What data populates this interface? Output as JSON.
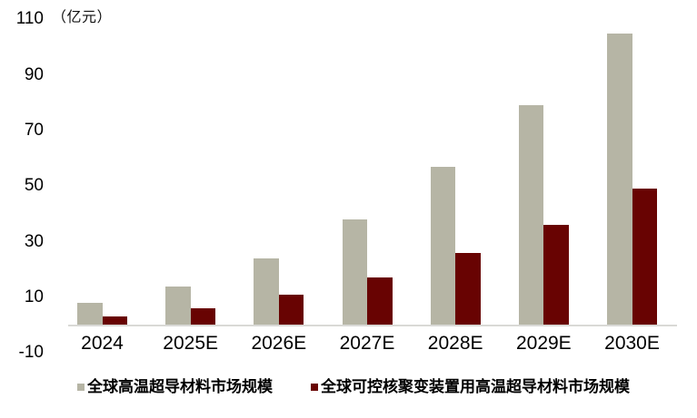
{
  "chart_data": {
    "type": "bar",
    "title": "",
    "unit_label": "（亿元）",
    "categories": [
      "2024",
      "2025E",
      "2026E",
      "2027E",
      "2028E",
      "2029E",
      "2030E"
    ],
    "series": [
      {
        "name": "全球高温超导材料市场规模",
        "color": "#b6b5a5",
        "values": [
          8,
          14,
          24,
          38,
          57,
          79,
          105
        ]
      },
      {
        "name": "全球可控核聚变装置用高温超导材料市场规模",
        "color": "#680302",
        "values": [
          3,
          6,
          11,
          17,
          26,
          36,
          49
        ]
      }
    ],
    "y_axis": {
      "ticks": [
        110,
        90,
        70,
        50,
        30,
        10,
        -10
      ],
      "min": -10,
      "max": 110
    },
    "xlabel": "",
    "ylabel": "亿元",
    "grid": "none",
    "legend_position": "bottom",
    "axis_line_color": "#d9d9d6",
    "background": "#ffffff"
  }
}
